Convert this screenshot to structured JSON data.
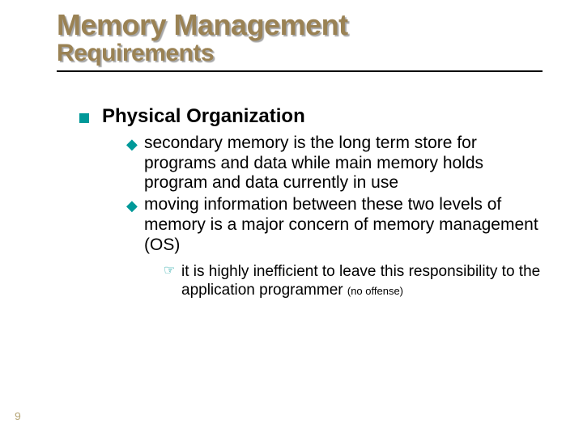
{
  "title": {
    "line1": "Memory Management",
    "line2": "Requirements",
    "color": "#9a8254",
    "line1_fontsize": 36,
    "line2_fontsize": 30,
    "rule_color": "#000000"
  },
  "bullet_colors": {
    "lvl1": "#009999",
    "lvl2": "#009999",
    "lvl3": "#009999"
  },
  "content": {
    "heading": "Physical Organization",
    "heading_fontsize": 24,
    "points": [
      "secondary memory is the long term store for programs and data while main memory holds program and data currently in use",
      "moving information between these two levels of memory is a major concern of memory management (OS)"
    ],
    "point_fontsize": 21,
    "subpoints": [
      {
        "text": "it is highly inefficient to leave this responsibility to the application programmer",
        "note": "(no offense)"
      }
    ],
    "subpoint_fontsize": 19,
    "note_fontsize": 13
  },
  "page_number": "9",
  "page_number_color": "#b8a87a",
  "background_color": "#ffffff"
}
